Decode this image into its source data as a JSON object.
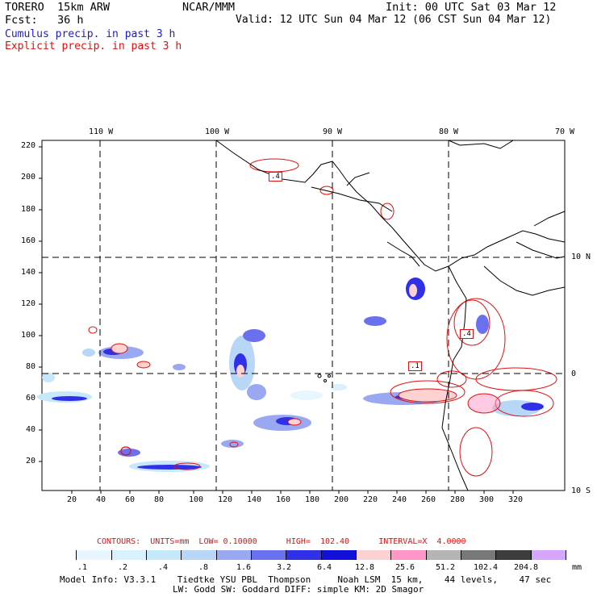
{
  "header": {
    "model": "TORERO  15km ARW",
    "org": "NCAR/MMM",
    "init": "Init: 00 UTC Sat 03 Mar 12",
    "fcst": "Fcst:   36 h",
    "valid": "Valid: 12 UTC Sun 04 Mar 12 (06 CST Sun 04 Mar 12)",
    "field1": "Cumulus precip. in past 3 h",
    "field2": "Explicit precip. in past 3 h",
    "field1_color": "#1c1ccf",
    "field2_color": "#e01010"
  },
  "axes": {
    "top_lon": [
      "110 W",
      "100 W",
      "90 W",
      "80 W",
      "70 W"
    ],
    "right_lat": [
      "10 N",
      "0",
      "10 S"
    ],
    "left_y": [
      "220",
      "200",
      "180",
      "160",
      "140",
      "120",
      "100",
      "80",
      "60",
      "40",
      "20"
    ],
    "bottom_x": [
      "20",
      "40",
      "60",
      "80",
      "100",
      "120",
      "140",
      "160",
      "180",
      "200",
      "220",
      "240",
      "260",
      "280",
      "300",
      "320"
    ]
  },
  "map_labels": [
    ".4",
    ".4",
    ".1"
  ],
  "contour_info": {
    "text": "CONTOURS:  UNITS=mm  LOW= 0.10000      HIGH=  102.40      INTERVAL=X  4.0000"
  },
  "legend": {
    "colors": [
      "#ffffff",
      "#e8f6ff",
      "#d8f0ff",
      "#c6e8fb",
      "#b8d6f6",
      "#9aa8f2",
      "#6a70ee",
      "#3030e8",
      "#1010d8",
      "#ffd2d2",
      "#ff96c6",
      "#b4b4b4",
      "#787878",
      "#3c3c3c",
      "#d6a6ff"
    ],
    "labels": [
      ".1",
      ".2",
      ".4",
      ".8",
      "1.6",
      "3.2",
      "6.4",
      "12.8",
      "25.6",
      "51.2",
      "102.4",
      "204.8"
    ],
    "unit": "mm"
  },
  "footer": {
    "line1": "Model Info: V3.3.1    Tiedtke YSU PBL  Thompson     Noah LSM  15 km,    44 levels,    47 sec",
    "line2": "LW: Godd SW: Goddard DIFF: simple KM: 2D Smagor"
  }
}
